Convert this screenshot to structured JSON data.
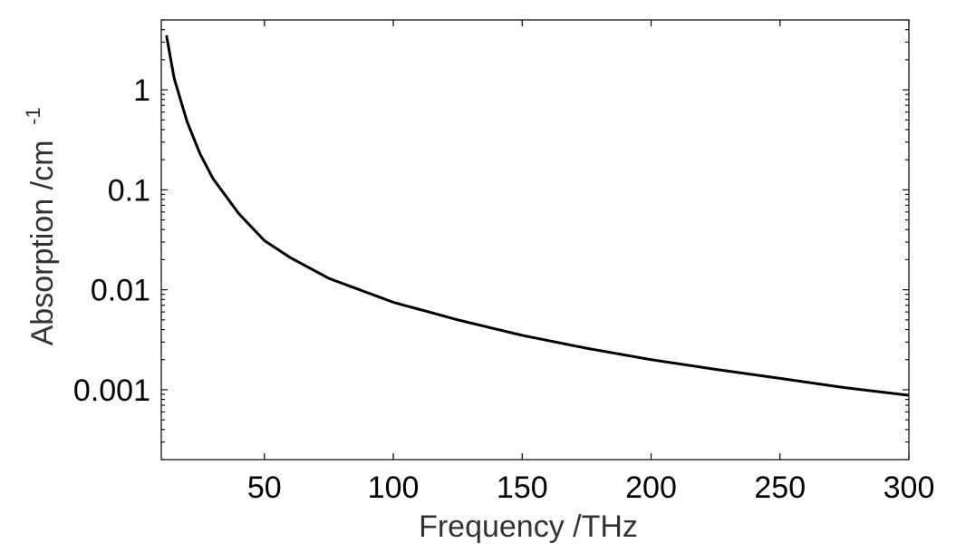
{
  "chart_data": {
    "type": "line",
    "title": "",
    "xlabel": "Frequency /THz",
    "ylabel": "Absorption /cm",
    "ylabel_superscript": "-1",
    "xlim": [
      10,
      300
    ],
    "ylim": [
      0.0002,
      5
    ],
    "yscale": "log",
    "grid": false,
    "x_ticks": [
      50,
      100,
      150,
      200,
      250,
      300
    ],
    "x_tick_labels": [
      "50",
      "100",
      "150",
      "200",
      "250",
      "300"
    ],
    "y_ticks": [
      0.001,
      0.01,
      0.1,
      1
    ],
    "y_tick_labels": [
      "0.001",
      "0.01",
      "0.1",
      "1"
    ],
    "line_color": "#000000",
    "series": [
      {
        "x": [
          12,
          15,
          20,
          25,
          30,
          40,
          50,
          60,
          75,
          100,
          125,
          150,
          175,
          200,
          225,
          250,
          275,
          300
        ],
        "values": [
          3.5,
          1.3,
          0.48,
          0.23,
          0.13,
          0.058,
          0.031,
          0.021,
          0.013,
          0.0075,
          0.005,
          0.0035,
          0.0026,
          0.002,
          0.0016,
          0.0013,
          0.00105,
          0.00088
        ]
      }
    ]
  }
}
